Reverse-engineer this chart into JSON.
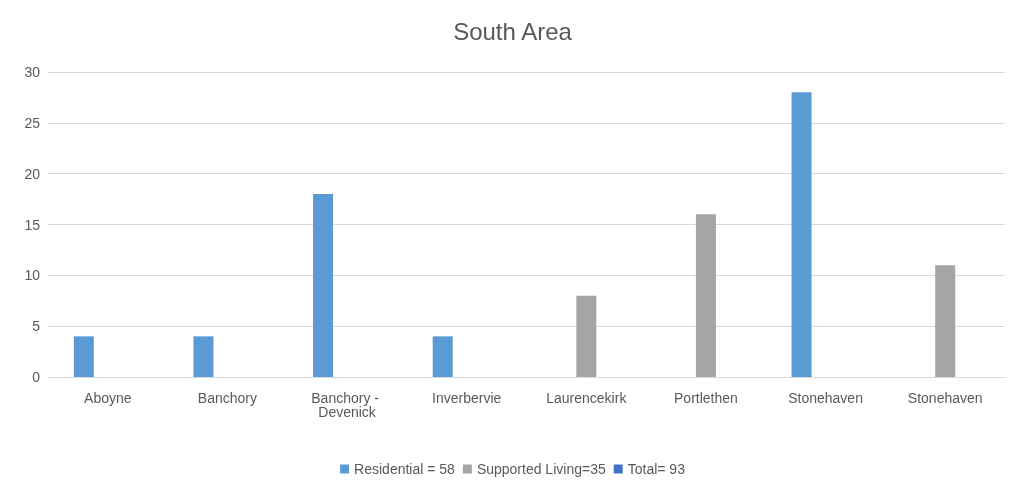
{
  "chart_data": {
    "type": "bar",
    "title": "South Area",
    "categories": [
      "Aboyne",
      "Banchory",
      "Banchory - Devenick",
      "Inverbervie",
      "Laurencekirk",
      "Portlethen",
      "Stonehaven",
      "Stonehaven"
    ],
    "series": [
      {
        "name": "Residential = 58",
        "color": "#5b9bd5",
        "values": [
          4,
          4,
          18,
          4,
          null,
          null,
          28,
          null
        ]
      },
      {
        "name": "Supported Living=35",
        "color": "#a5a5a5",
        "values": [
          null,
          null,
          null,
          null,
          8,
          16,
          null,
          11
        ]
      },
      {
        "name": "Total= 93",
        "color": "#4472c4",
        "values": [
          null,
          null,
          null,
          null,
          null,
          null,
          null,
          null
        ]
      }
    ],
    "ylim": [
      0,
      30
    ],
    "yticks": [
      0,
      5,
      10,
      15,
      20,
      25,
      30
    ],
    "grid": "y",
    "legend": "bottom"
  }
}
